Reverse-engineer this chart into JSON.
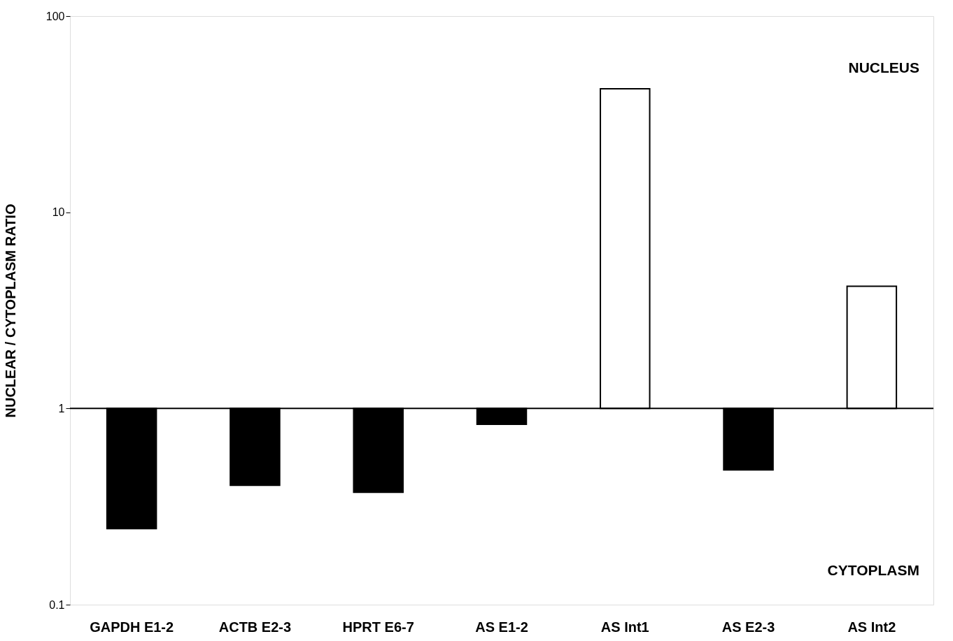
{
  "chart_data": {
    "type": "bar",
    "ylabel": "NUCLEAR / CYTOPLASM RATIO",
    "categories": [
      "GAPDH E1-2",
      "ACTB E2-3",
      "HPRT E6-7",
      "AS E1-2",
      "AS Int1",
      "AS E2-3",
      "AS Int2"
    ],
    "base": [
      1,
      1,
      1,
      1,
      1,
      1,
      1
    ],
    "values": [
      -0.756,
      -0.594,
      -0.626,
      -0.17,
      41.6,
      -0.514,
      3.2
    ],
    "colors": [
      "#000000",
      "#000000",
      "#000000",
      "#000000",
      "#ffffff",
      "#000000",
      "#ffffff"
    ],
    "log": true,
    "ylim": [
      0.1,
      100
    ],
    "yticks": [
      0.1,
      1,
      10,
      100
    ],
    "grid": false,
    "ref_lines": [
      {
        "axis": "y",
        "value": 1,
        "color": "#000000"
      }
    ],
    "annotations": [
      "NUCLEUS",
      "CYTOPLASM"
    ]
  }
}
